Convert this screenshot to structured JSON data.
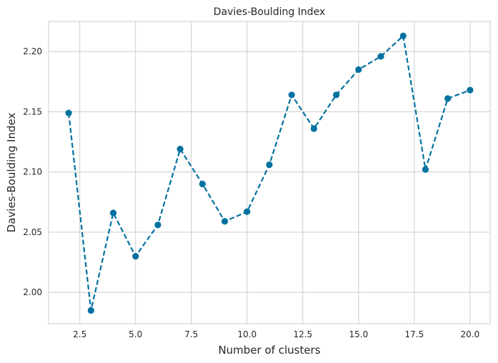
{
  "chart_data": {
    "type": "line",
    "title": "Davies-Boulding Index",
    "xlabel": "Number of clusters",
    "ylabel": "Davies-Boulding Index",
    "xlim": [
      1.1,
      20.9
    ],
    "ylim": [
      1.974,
      2.225
    ],
    "xticks": [
      2.5,
      5.0,
      7.5,
      10.0,
      12.5,
      15.0,
      17.5,
      20.0
    ],
    "xtick_labels": [
      "2.5",
      "5.0",
      "7.5",
      "10.0",
      "12.5",
      "15.0",
      "17.5",
      "20.0"
    ],
    "yticks": [
      2.0,
      2.05,
      2.1,
      2.15,
      2.2
    ],
    "ytick_labels": [
      "2.00",
      "2.05",
      "2.10",
      "2.15",
      "2.20"
    ],
    "grid": true,
    "line_style": "dashed",
    "marker": "circle",
    "color": "#0072a0",
    "x": [
      2,
      3,
      4,
      5,
      6,
      7,
      8,
      9,
      10,
      11,
      12,
      13,
      14,
      15,
      16,
      17,
      18,
      19,
      20
    ],
    "y": [
      2.149,
      1.985,
      2.066,
      2.03,
      2.056,
      2.119,
      2.09,
      2.059,
      2.067,
      2.106,
      2.164,
      2.136,
      2.164,
      2.185,
      2.196,
      2.213,
      2.102,
      2.161,
      2.168
    ]
  }
}
